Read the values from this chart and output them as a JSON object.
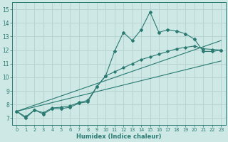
{
  "xlabel": "Humidex (Indice chaleur)",
  "bg_color": "#cde8e5",
  "grid_color": "#b8d4d2",
  "line_color": "#2a7a72",
  "xlim": [
    -0.5,
    23.5
  ],
  "ylim": [
    6.5,
    15.5
  ],
  "xticks": [
    0,
    1,
    2,
    3,
    4,
    5,
    6,
    7,
    8,
    9,
    10,
    11,
    12,
    13,
    14,
    15,
    16,
    17,
    18,
    19,
    20,
    21,
    22,
    23
  ],
  "yticks": [
    7,
    8,
    9,
    10,
    11,
    12,
    13,
    14,
    15
  ],
  "line1_x": [
    0,
    1,
    2,
    3,
    4,
    5,
    6,
    7,
    8,
    9,
    10,
    11,
    12,
    13,
    14,
    15,
    16,
    17,
    18,
    19,
    20,
    21,
    22,
    23
  ],
  "line1_y": [
    7.5,
    7.0,
    7.6,
    7.3,
    7.7,
    7.7,
    7.8,
    8.1,
    8.2,
    9.3,
    10.1,
    11.9,
    13.3,
    12.7,
    13.5,
    14.8,
    13.3,
    13.5,
    13.4,
    13.2,
    12.8,
    11.9,
    11.9,
    12.0
  ],
  "line2_x": [
    0,
    1,
    2,
    3,
    4,
    5,
    6,
    7,
    8,
    9,
    10,
    11,
    12,
    13,
    14,
    15,
    16,
    17,
    18,
    19,
    20,
    21,
    22,
    23
  ],
  "line2_y": [
    7.5,
    7.1,
    7.6,
    7.4,
    7.75,
    7.8,
    7.9,
    8.15,
    8.3,
    9.3,
    10.1,
    10.4,
    10.7,
    11.0,
    11.3,
    11.5,
    11.7,
    11.9,
    12.1,
    12.2,
    12.3,
    12.1,
    12.05,
    12.0
  ],
  "line3_x": [
    0,
    23
  ],
  "line3_y": [
    7.5,
    12.7
  ],
  "line4_x": [
    0,
    23
  ],
  "line4_y": [
    7.5,
    11.2
  ]
}
